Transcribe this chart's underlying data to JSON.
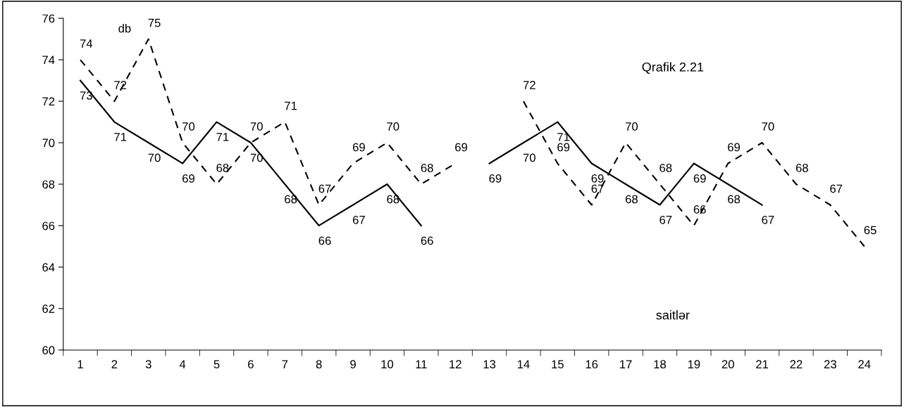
{
  "chart_data": {
    "type": "line",
    "ylabel": "db",
    "xlabel": "saitlər",
    "annotations": [
      "Qrafik 2.21"
    ],
    "categories": [
      "1",
      "2",
      "3",
      "4",
      "5",
      "6",
      "7",
      "8",
      "9",
      "10",
      "11",
      "12",
      "13",
      "14",
      "15",
      "16",
      "17",
      "18",
      "19",
      "20",
      "21",
      "22",
      "23",
      "24"
    ],
    "ylim": [
      60,
      76
    ],
    "yticks": [
      60,
      62,
      64,
      66,
      68,
      70,
      72,
      74,
      76
    ],
    "grid": false,
    "legend": false,
    "data_labels": true,
    "marker": "none",
    "series": [
      {
        "color": "#000000",
        "line_style": "solid",
        "values": [
          73,
          71,
          70,
          69,
          71,
          70,
          68,
          66,
          67,
          68,
          66,
          null,
          69,
          70,
          71,
          69,
          68,
          67,
          69,
          68,
          67,
          null,
          null,
          null
        ]
      },
      {
        "color": "#000000",
        "line_style": "dashed",
        "values": [
          74,
          72,
          75,
          70,
          68,
          70,
          71,
          67,
          69,
          70,
          68,
          69,
          null,
          72,
          69,
          67,
          70,
          68,
          66,
          69,
          70,
          68,
          67,
          65
        ]
      }
    ]
  }
}
